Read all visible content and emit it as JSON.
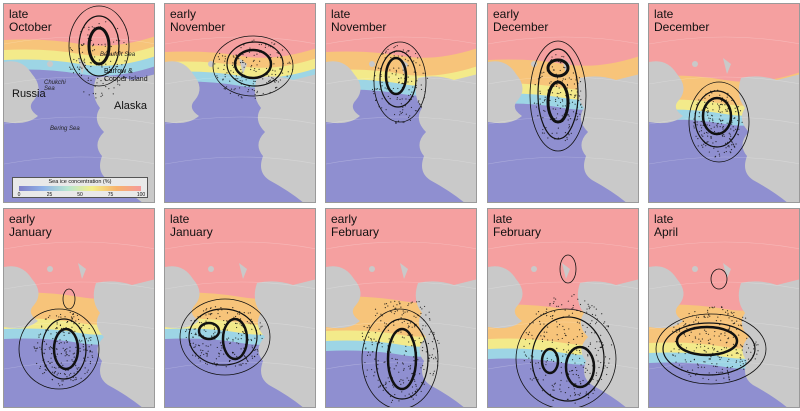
{
  "panels": [
    {
      "label": "late\nOctober"
    },
    {
      "label": "early\nNovember"
    },
    {
      "label": "late\nNovember"
    },
    {
      "label": "early\nDecember"
    },
    {
      "label": "late\nDecember"
    },
    {
      "label": "early\nJanuary"
    },
    {
      "label": "late\nJanuary"
    },
    {
      "label": "early\nFebruary"
    },
    {
      "label": "late\nFebruary"
    },
    {
      "label": "late\nApril"
    }
  ],
  "map_labels": {
    "beaufort_sea": "Beaufort Sea",
    "chukchi_sea": "Chukchi\nSea",
    "barrow": "Barrow &\nCooper Island",
    "russia": "Russia",
    "alaska": "Alaska",
    "bering_sea": "Bering Sea"
  },
  "legend": {
    "title": "Sea ice concentration (%)",
    "ticks": [
      "0",
      "25",
      "50",
      "75",
      "100"
    ],
    "colors": [
      "#7f7fc8",
      "#90b3e8",
      "#b7e6d0",
      "#f4ef8a",
      "#f7b36c",
      "#f59a9a"
    ]
  },
  "colors": {
    "ocean": "#8f8fd0",
    "land": "#c9c9c9",
    "ice_high": "#f5a0a0",
    "ice_mid": "#f7c47a",
    "ice_edge": "#f3ea8a",
    "ice_low": "#9ed9e6",
    "contour": "#111111"
  }
}
